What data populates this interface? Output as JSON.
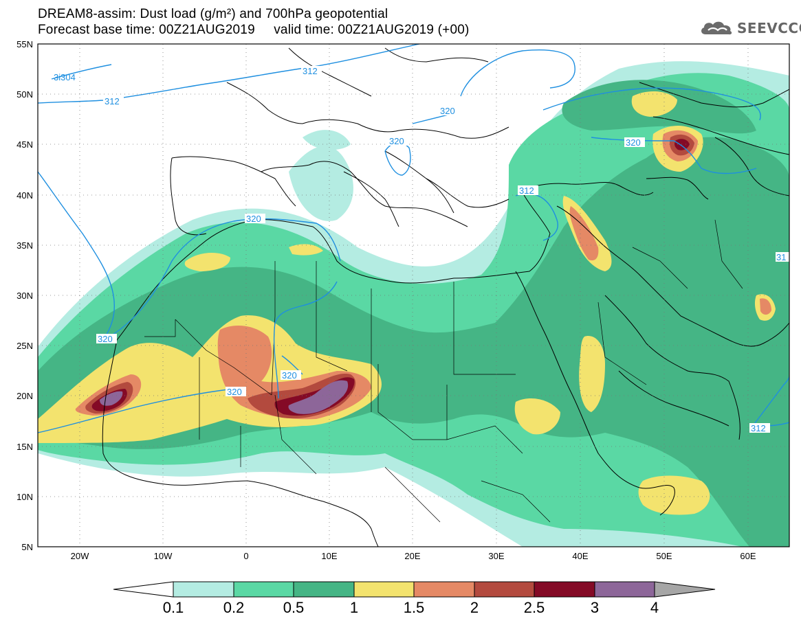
{
  "title": {
    "line1": "DREAM8-assim: Dust load (g/m²) and 700hPa geopotential",
    "line2": "Forecast base time: 00Z21AUG2019     valid time: 00Z21AUG2019 (+00)"
  },
  "logo": {
    "icon": "cloud-icon",
    "text": "SEEVCCC"
  },
  "map": {
    "lon_range": [
      -25,
      65
    ],
    "lat_range": [
      5,
      55
    ],
    "lat_ticks": [
      "55N",
      "50N",
      "45N",
      "40N",
      "35N",
      "30N",
      "25N",
      "20N",
      "15N",
      "10N",
      "5N"
    ],
    "lon_ticks": [
      "20W",
      "10W",
      "0",
      "10E",
      "20E",
      "30E",
      "40E",
      "50E",
      "60E"
    ],
    "contour_labels": [
      "3i304",
      "312",
      "312",
      "320",
      "320",
      "320",
      "320",
      "312",
      "320",
      "320",
      "320",
      "31",
      "312"
    ]
  },
  "colorbar": {
    "levels": [
      "0.1",
      "0.2",
      "0.5",
      "1",
      "1.5",
      "2",
      "2.5",
      "3",
      "4"
    ],
    "colors": [
      "#ffffff",
      "#b4ece2",
      "#5ad8a4",
      "#45b585",
      "#f3e36e",
      "#e58965",
      "#b34a3e",
      "#840a26",
      "#8d6699",
      "#a6a6a6"
    ]
  }
}
